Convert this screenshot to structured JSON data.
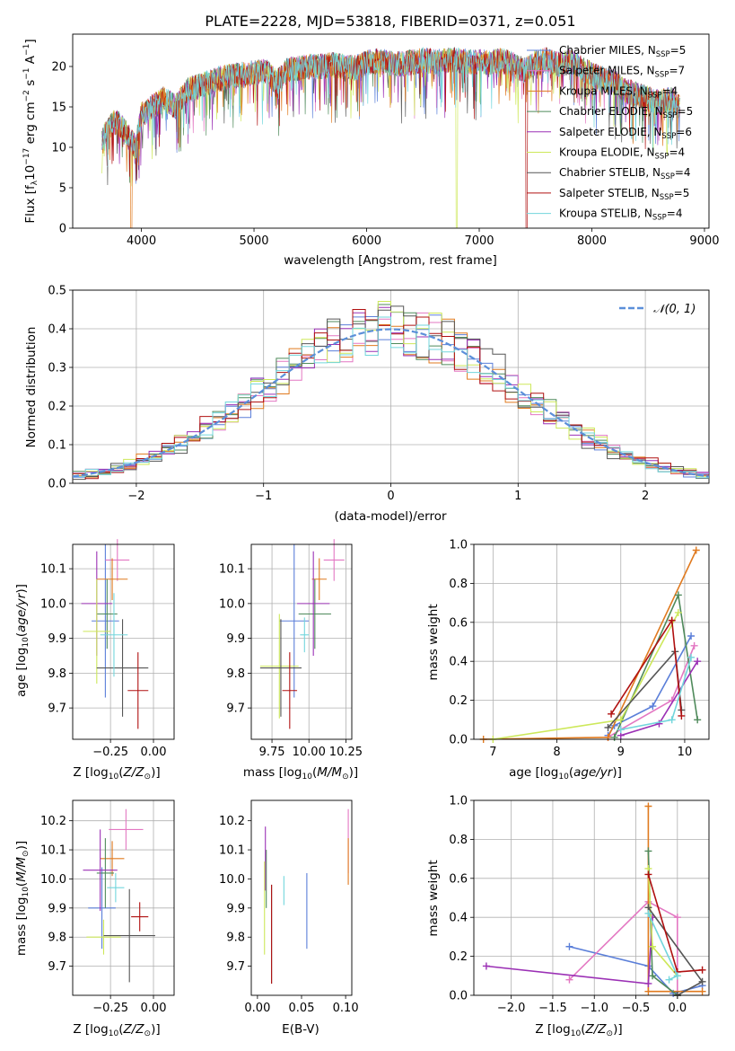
{
  "figure_title": "PLATE=2228, MJD=53818, FIBERID=0371, z=0.051",
  "models": [
    {
      "name": "Chabrier MILES",
      "nssp": "5",
      "color": "#5b7fd9"
    },
    {
      "name": "Salpeter MILES",
      "nssp": "7",
      "color": "#e377c2"
    },
    {
      "name": "Kroupa MILES",
      "nssp": "4",
      "color": "#e07a1f"
    },
    {
      "name": "Chabrier ELODIE",
      "nssp": "5",
      "color": "#4f8a5b"
    },
    {
      "name": "Salpeter ELODIE",
      "nssp": "6",
      "color": "#9b30b5"
    },
    {
      "name": "Kroupa ELODIE",
      "nssp": "4",
      "color": "#cde85a"
    },
    {
      "name": "Chabrier STELIB",
      "nssp": "4",
      "color": "#555555"
    },
    {
      "name": "Salpeter STELIB",
      "nssp": "5",
      "color": "#b01010"
    },
    {
      "name": "Kroupa STELIB",
      "nssp": "4",
      "color": "#72d6dc"
    }
  ],
  "chart_data": [
    {
      "id": "spectrum",
      "type": "line",
      "xlabel": "wavelength [Angstrom, rest frame]",
      "ylabel": "Flux [f_λ10^{-17} erg cm^{-2} s^{-1} A^{-1}]",
      "xlim": [
        3390,
        9040
      ],
      "ylim": [
        0,
        24
      ],
      "xticks": [
        4000,
        5000,
        6000,
        7000,
        8000,
        9000
      ],
      "yticks": [
        0,
        5,
        10,
        15,
        20
      ],
      "grid": false,
      "legend": "right",
      "x": [
        3650,
        3700,
        3750,
        3800,
        3850,
        3900,
        3950,
        4000,
        4100,
        4200,
        4300,
        4400,
        4500,
        4600,
        4700,
        4800,
        4900,
        5000,
        5100,
        5200,
        5300,
        5400,
        5500,
        5600,
        5700,
        5800,
        5900,
        6000,
        6100,
        6200,
        6300,
        6400,
        6500,
        6600,
        6700,
        6800,
        6900,
        7000,
        7100,
        7200,
        7300,
        7400,
        7500,
        7600,
        7700,
        7800,
        7900,
        8000,
        8100,
        8200,
        8300,
        8400,
        8500,
        8600,
        8700,
        8780
      ],
      "y": [
        11,
        12,
        13,
        13,
        12,
        11,
        10,
        14,
        15,
        16,
        15,
        17,
        17.5,
        18,
        18.5,
        18.8,
        19,
        19.2,
        19.5,
        18,
        19.6,
        19.8,
        20,
        20,
        20.2,
        20,
        19.8,
        20.5,
        20.6,
        20.4,
        20.3,
        20.5,
        20.8,
        20.6,
        20.7,
        20.8,
        20.5,
        20.6,
        20.5,
        20.7,
        20.3,
        19.5,
        20.5,
        20.8,
        20.2,
        20.6,
        19.8,
        19,
        18.5,
        18,
        17,
        16.5,
        16,
        15.5,
        16,
        15
      ],
      "dropouts": [
        {
          "wavelength": 3910,
          "series": "Kroupa MILES"
        },
        {
          "wavelength": 6800,
          "series": "Kroupa ELODIE"
        },
        {
          "wavelength": 7420,
          "series": "Salpeter STELIB"
        }
      ]
    },
    {
      "id": "residuals",
      "type": "histogram",
      "xlabel": "(data-model)/error",
      "ylabel": "Normed distribution",
      "xlim": [
        -2.5,
        2.5
      ],
      "ylim": [
        0,
        0.5
      ],
      "xticks": [
        -2,
        -1,
        0,
        1,
        2
      ],
      "yticks": [
        0.0,
        0.1,
        0.2,
        0.3,
        0.4,
        0.5
      ],
      "grid": true,
      "legend": "top-right",
      "bin_width": 0.1,
      "bin_start": -2.5,
      "reference_curve": "N(0,1)",
      "reference_label": "𝒩(0, 1)"
    },
    {
      "id": "age_vs_Z",
      "type": "scatter",
      "xlabel": "Z [log10(Z/Z⊙)]",
      "ylabel": "age  [log10(age/yr)]",
      "xlim": [
        -0.47,
        0.12
      ],
      "ylim": [
        9.61,
        10.17
      ],
      "xticks": [
        -0.25,
        0.0
      ],
      "yticks": [
        9.7,
        9.8,
        9.9,
        10.0,
        10.1
      ],
      "grid": true,
      "points": [
        {
          "x": -0.28,
          "y": 9.95,
          "xerr": 0.08,
          "yerr": 0.22
        },
        {
          "x": -0.21,
          "y": 10.125,
          "xerr": 0.07,
          "yerr": 0.06
        },
        {
          "x": -0.24,
          "y": 10.07,
          "xerr": 0.09,
          "yerr": 0.06
        },
        {
          "x": -0.27,
          "y": 9.97,
          "xerr": 0.06,
          "yerr": 0.1
        },
        {
          "x": -0.33,
          "y": 10.0,
          "xerr": 0.09,
          "yerr": 0.15
        },
        {
          "x": -0.33,
          "y": 9.92,
          "xerr": 0.08,
          "yerr": 0.15
        },
        {
          "x": -0.18,
          "y": 9.815,
          "xerr": 0.15,
          "yerr": 0.14
        },
        {
          "x": -0.09,
          "y": 9.75,
          "xerr": 0.06,
          "yerr": 0.11
        },
        {
          "x": -0.23,
          "y": 9.91,
          "xerr": 0.08,
          "yerr": 0.12
        }
      ]
    },
    {
      "id": "age_vs_mass",
      "type": "scatter",
      "xlabel": "mass [log10(M/M⊙)]",
      "ylabel": "",
      "xlim": [
        9.61,
        10.29
      ],
      "ylim": [
        9.61,
        10.17
      ],
      "xticks": [
        9.75,
        10.0,
        10.25
      ],
      "yticks": [
        9.7,
        9.8,
        9.9,
        10.0,
        10.1
      ],
      "grid": true,
      "points": [
        {
          "x": 9.9,
          "y": 9.95,
          "xerr": 0.1,
          "yerr": 0.22
        },
        {
          "x": 10.17,
          "y": 10.125,
          "xerr": 0.07,
          "yerr": 0.06
        },
        {
          "x": 10.07,
          "y": 10.07,
          "xerr": 0.05,
          "yerr": 0.06
        },
        {
          "x": 10.04,
          "y": 9.97,
          "xerr": 0.11,
          "yerr": 0.1
        },
        {
          "x": 10.03,
          "y": 10.0,
          "xerr": 0.11,
          "yerr": 0.15
        },
        {
          "x": 9.8,
          "y": 9.82,
          "xerr": 0.13,
          "yerr": 0.15
        },
        {
          "x": 9.81,
          "y": 9.815,
          "xerr": 0.14,
          "yerr": 0.14
        },
        {
          "x": 9.87,
          "y": 9.75,
          "xerr": 0.05,
          "yerr": 0.11
        },
        {
          "x": 9.97,
          "y": 9.91,
          "xerr": 0.03,
          "yerr": 0.05
        }
      ]
    },
    {
      "id": "massweight_vs_age",
      "type": "line",
      "xlabel": "age  [log10(age/yr)]",
      "ylabel": "mass weight",
      "xlim": [
        6.7,
        10.38
      ],
      "ylim": [
        0,
        1.0
      ],
      "xticks": [
        7,
        8,
        9,
        10
      ],
      "yticks": [
        0.0,
        0.2,
        0.4,
        0.6,
        0.8,
        1.0
      ],
      "grid": true,
      "series": [
        {
          "model": "Chabrier MILES",
          "points": [
            [
              8.8,
              0.02
            ],
            [
              8.9,
              0.07
            ],
            [
              9.5,
              0.17
            ],
            [
              10.1,
              0.53
            ]
          ]
        },
        {
          "model": "Salpeter MILES",
          "points": [
            [
              8.8,
              0.01
            ],
            [
              9.0,
              0.05
            ],
            [
              9.8,
              0.2
            ],
            [
              10.15,
              0.48
            ]
          ]
        },
        {
          "model": "Kroupa MILES",
          "points": [
            [
              6.85,
              0.0
            ],
            [
              8.8,
              0.01
            ],
            [
              10.18,
              0.97
            ]
          ]
        },
        {
          "model": "Chabrier ELODIE",
          "points": [
            [
              8.9,
              0.01
            ],
            [
              9.9,
              0.74
            ],
            [
              10.2,
              0.1
            ]
          ]
        },
        {
          "model": "Salpeter ELODIE",
          "points": [
            [
              9.0,
              0.02
            ],
            [
              9.6,
              0.08
            ],
            [
              10.2,
              0.4
            ]
          ]
        },
        {
          "model": "Kroupa ELODIE",
          "points": [
            [
              7.0,
              0.0
            ],
            [
              9.0,
              0.1
            ],
            [
              9.9,
              0.65
            ]
          ]
        },
        {
          "model": "Chabrier STELIB",
          "points": [
            [
              8.8,
              0.06
            ],
            [
              9.85,
              0.45
            ],
            [
              9.95,
              0.15
            ]
          ]
        },
        {
          "model": "Salpeter STELIB",
          "points": [
            [
              8.85,
              0.13
            ],
            [
              9.8,
              0.61
            ],
            [
              9.95,
              0.12
            ]
          ]
        },
        {
          "model": "Kroupa STELIB",
          "points": [
            [
              9.0,
              0.05
            ],
            [
              9.8,
              0.1
            ],
            [
              10.1,
              0.42
            ]
          ]
        }
      ]
    },
    {
      "id": "mass_vs_Z",
      "type": "scatter",
      "xlabel": "Z [log10(Z/Z⊙)]",
      "ylabel": "mass [log10(M/M⊙)]",
      "xlim": [
        -0.47,
        0.12
      ],
      "ylim": [
        9.6,
        10.27
      ],
      "xticks": [
        -0.25,
        0.0
      ],
      "yticks": [
        9.7,
        9.8,
        9.9,
        10.0,
        10.1,
        10.2
      ],
      "grid": true,
      "points": [
        {
          "x": -0.3,
          "y": 9.9,
          "xerr": 0.08,
          "yerr": 0.14
        },
        {
          "x": -0.16,
          "y": 10.17,
          "xerr": 0.1,
          "yerr": 0.07
        },
        {
          "x": -0.24,
          "y": 10.07,
          "xerr": 0.07,
          "yerr": 0.06
        },
        {
          "x": -0.28,
          "y": 10.02,
          "xerr": 0.05,
          "yerr": 0.12
        },
        {
          "x": -0.31,
          "y": 10.03,
          "xerr": 0.1,
          "yerr": 0.14
        },
        {
          "x": -0.29,
          "y": 9.8,
          "xerr": 0.1,
          "yerr": 0.06
        },
        {
          "x": -0.14,
          "y": 9.805,
          "xerr": 0.15,
          "yerr": 0.16
        },
        {
          "x": -0.08,
          "y": 9.87,
          "xerr": 0.05,
          "yerr": 0.05
        },
        {
          "x": -0.22,
          "y": 9.97,
          "xerr": 0.05,
          "yerr": 0.05
        }
      ]
    },
    {
      "id": "mass_vs_ebv",
      "type": "scatter",
      "xlabel": "E(B-V)",
      "ylabel": "",
      "xlim": [
        -0.007,
        0.107
      ],
      "ylim": [
        9.6,
        10.27
      ],
      "xticks": [
        0.0,
        0.05,
        0.1
      ],
      "yticks": [
        9.7,
        9.8,
        9.9,
        10.0,
        10.1,
        10.2
      ],
      "grid": false,
      "points": [
        {
          "x": 0.056,
          "y": 9.89,
          "yerr": 0.13
        },
        {
          "x": 0.103,
          "y": 10.13,
          "yerr": 0.11
        },
        {
          "x": 0.103,
          "y": 10.06,
          "yerr": 0.08
        },
        {
          "x": 0.01,
          "y": 10.0,
          "yerr": 0.1
        },
        {
          "x": 0.009,
          "y": 10.07,
          "yerr": 0.11
        },
        {
          "x": 0.008,
          "y": 9.9,
          "yerr": 0.16
        },
        {
          "x": 0.016,
          "y": 9.81,
          "yerr": 0.17
        },
        {
          "x": 0.016,
          "y": 9.81,
          "yerr": 0.17
        },
        {
          "x": 0.03,
          "y": 9.96,
          "yerr": 0.05
        }
      ]
    },
    {
      "id": "massweight_vs_Z",
      "type": "line",
      "xlabel": "Z [log10(Z/Z⊙)]",
      "ylabel": "mass weight",
      "xlim": [
        -2.45,
        0.38
      ],
      "ylim": [
        0,
        1.0
      ],
      "xticks": [
        -2.0,
        -1.5,
        -1.0,
        -0.5,
        0.0
      ],
      "yticks": [
        0.0,
        0.2,
        0.4,
        0.6,
        0.8,
        1.0
      ],
      "grid": true,
      "series": [
        {
          "model": "Chabrier MILES",
          "points": [
            [
              -1.3,
              0.25
            ],
            [
              -0.35,
              0.15
            ],
            [
              -0.05,
              0.01
            ],
            [
              0.3,
              0.05
            ]
          ]
        },
        {
          "model": "Salpeter MILES",
          "points": [
            [
              -1.3,
              0.08
            ],
            [
              -0.35,
              0.48
            ],
            [
              0.0,
              0.4
            ],
            [
              0.0,
              0.0
            ]
          ]
        },
        {
          "model": "Kroupa MILES",
          "points": [
            [
              -0.35,
              0.97
            ],
            [
              -0.35,
              0.02
            ],
            [
              0.3,
              0.02
            ]
          ]
        },
        {
          "model": "Chabrier ELODIE",
          "points": [
            [
              -0.35,
              0.74
            ],
            [
              -0.3,
              0.1
            ],
            [
              0.0,
              0.0
            ]
          ]
        },
        {
          "model": "Salpeter ELODIE",
          "points": [
            [
              -2.3,
              0.15
            ],
            [
              -0.35,
              0.06
            ],
            [
              -0.3,
              0.4
            ]
          ]
        },
        {
          "model": "Kroupa ELODIE",
          "points": [
            [
              -0.35,
              0.65
            ],
            [
              -0.3,
              0.25
            ],
            [
              0.0,
              0.1
            ]
          ]
        },
        {
          "model": "Chabrier STELIB",
          "points": [
            [
              -0.35,
              0.45
            ],
            [
              0.3,
              0.07
            ],
            [
              0.0,
              0.0
            ]
          ]
        },
        {
          "model": "Salpeter STELIB",
          "points": [
            [
              -0.35,
              0.62
            ],
            [
              0.0,
              0.12
            ],
            [
              0.3,
              0.13
            ]
          ]
        },
        {
          "model": "Kroupa STELIB",
          "points": [
            [
              -0.35,
              0.42
            ],
            [
              0.0,
              0.1
            ],
            [
              -0.1,
              0.08
            ]
          ]
        }
      ]
    }
  ]
}
